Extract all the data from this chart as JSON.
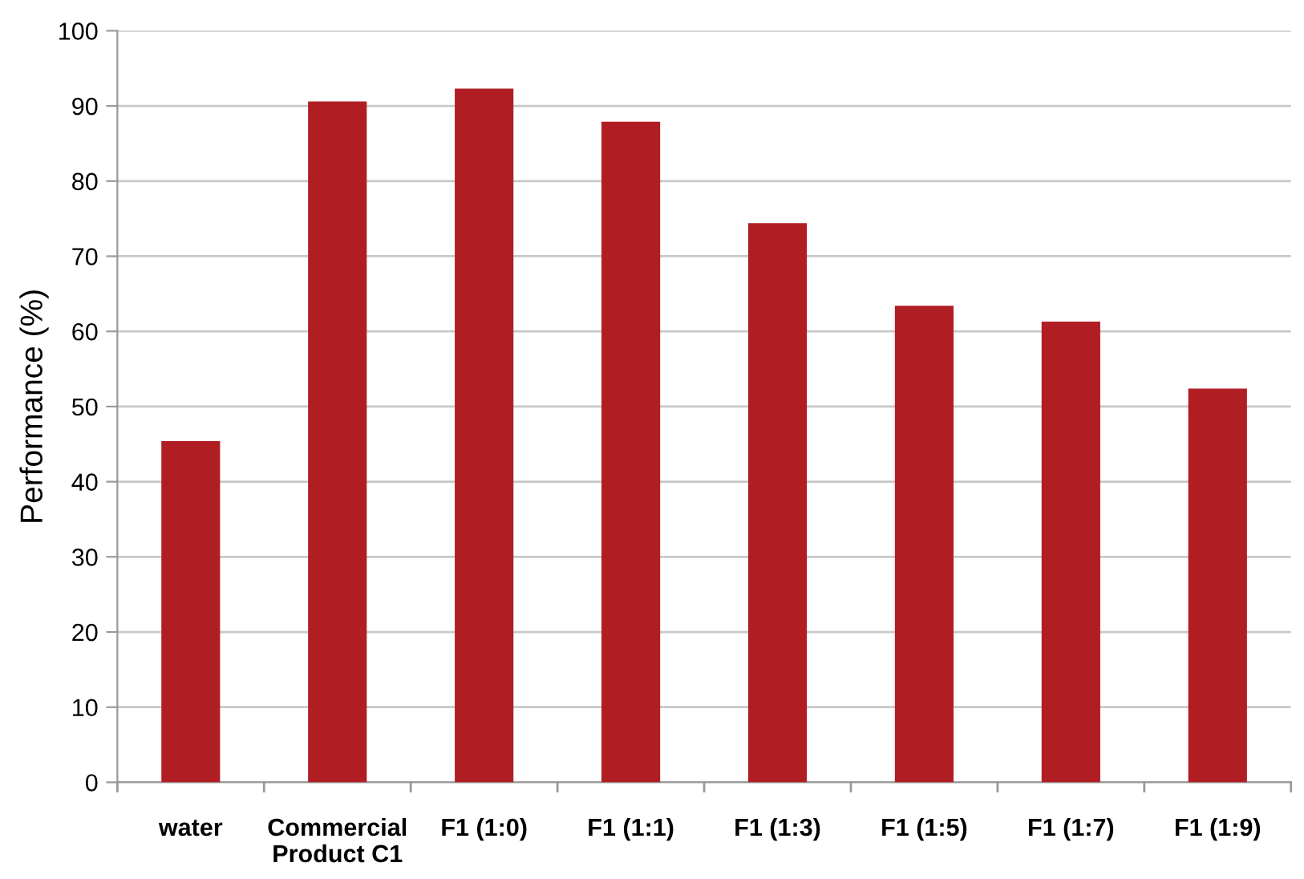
{
  "chart_data": {
    "type": "bar",
    "ylabel": "Performance (%)",
    "categories": [
      "water",
      "Commercial\nProduct C1",
      "F1 (1:0)",
      "F1 (1:1)",
      "F1 (1:3)",
      "F1 (1:5)",
      "F1 (1:7)",
      "F1 (1:9)"
    ],
    "values": [
      45.4,
      90.6,
      92.3,
      87.9,
      74.4,
      63.4,
      61.3,
      52.4
    ],
    "color": "#b01e24",
    "ylim": [
      0,
      100
    ],
    "yticks": [
      0,
      10,
      20,
      30,
      40,
      50,
      60,
      70,
      80,
      90,
      100
    ],
    "grid": "y"
  }
}
